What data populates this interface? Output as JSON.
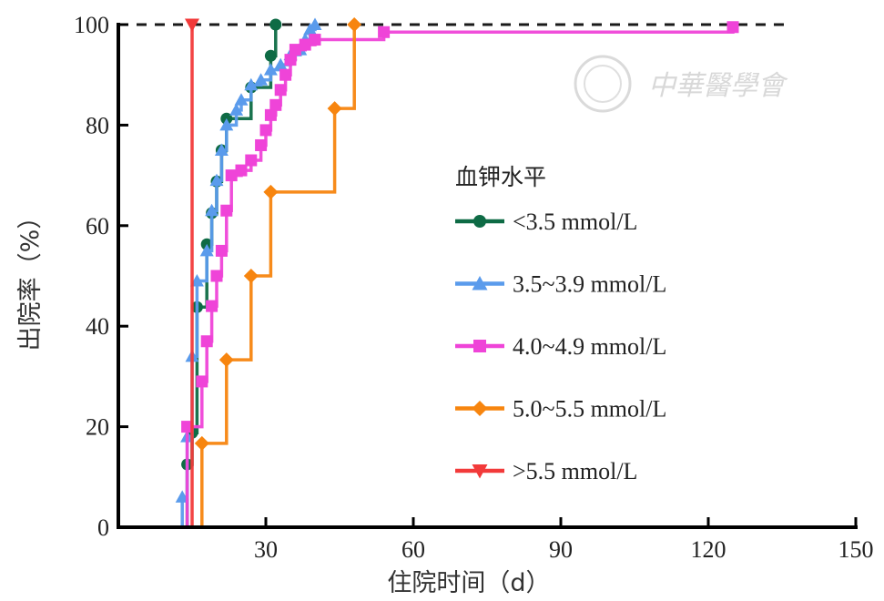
{
  "chart_data": {
    "type": "line",
    "title": "",
    "xlabel": "住院时间（d）",
    "ylabel": "出院率（%）",
    "xlim": [
      0,
      150
    ],
    "ylim": [
      0,
      100
    ],
    "x_ticks": [
      "30",
      "60",
      "90",
      "120",
      "150"
    ],
    "y_ticks": [
      "0",
      "20",
      "40",
      "60",
      "80",
      "100"
    ],
    "reference_line": {
      "y": 100,
      "style": "dashed"
    },
    "legend_title": "血钾水平",
    "legend_position": "right",
    "series": [
      {
        "name": "<3.5 mmol/L",
        "color": "#0e6b45",
        "marker": "circle",
        "points": [
          [
            14,
            12.5
          ],
          [
            15,
            18.8
          ],
          [
            16,
            43.8
          ],
          [
            18,
            56.3
          ],
          [
            19,
            62.5
          ],
          [
            20,
            68.8
          ],
          [
            21,
            75.0
          ],
          [
            22,
            81.3
          ],
          [
            27,
            87.5
          ],
          [
            31,
            93.8
          ],
          [
            32,
            100
          ]
        ]
      },
      {
        "name": "3.5~3.9 mmol/L",
        "color": "#5a9bec",
        "marker": "triangle-up",
        "points": [
          [
            13,
            6
          ],
          [
            14,
            18
          ],
          [
            15,
            34
          ],
          [
            16,
            49
          ],
          [
            18,
            55
          ],
          [
            19,
            63
          ],
          [
            20,
            69
          ],
          [
            21,
            75
          ],
          [
            22,
            80
          ],
          [
            24,
            83
          ],
          [
            25,
            85
          ],
          [
            27,
            88
          ],
          [
            29,
            89
          ],
          [
            31,
            91
          ],
          [
            33,
            92
          ],
          [
            35,
            94
          ],
          [
            37,
            95
          ],
          [
            38,
            97
          ],
          [
            39,
            99
          ],
          [
            40,
            100
          ]
        ]
      },
      {
        "name": "4.0~4.9 mmol/L",
        "color": "#ef44d8",
        "marker": "square",
        "points": [
          [
            14,
            20
          ],
          [
            17,
            29
          ],
          [
            18,
            37
          ],
          [
            19,
            44
          ],
          [
            20,
            50
          ],
          [
            21,
            55
          ],
          [
            22,
            63
          ],
          [
            23,
            70
          ],
          [
            25,
            71
          ],
          [
            27,
            73
          ],
          [
            29,
            76
          ],
          [
            30,
            79
          ],
          [
            31,
            82
          ],
          [
            32,
            84
          ],
          [
            33,
            87
          ],
          [
            34,
            90
          ],
          [
            35,
            93
          ],
          [
            36,
            95
          ],
          [
            38,
            96
          ],
          [
            40,
            97
          ],
          [
            54,
            98.5
          ],
          [
            125,
            99.5
          ]
        ]
      },
      {
        "name": "5.0~5.5 mmol/L",
        "color": "#f7850f",
        "marker": "diamond",
        "points": [
          [
            17,
            16.7
          ],
          [
            22,
            33.3
          ],
          [
            27,
            50.0
          ],
          [
            31,
            66.7
          ],
          [
            44,
            83.3
          ],
          [
            48,
            100
          ]
        ]
      },
      {
        "name": ">5.5 mmol/L",
        "color": "#f23a3a",
        "marker": "triangle-down",
        "points": [
          [
            15,
            100
          ]
        ]
      }
    ]
  },
  "watermark": {
    "text": "中華醫學會"
  }
}
